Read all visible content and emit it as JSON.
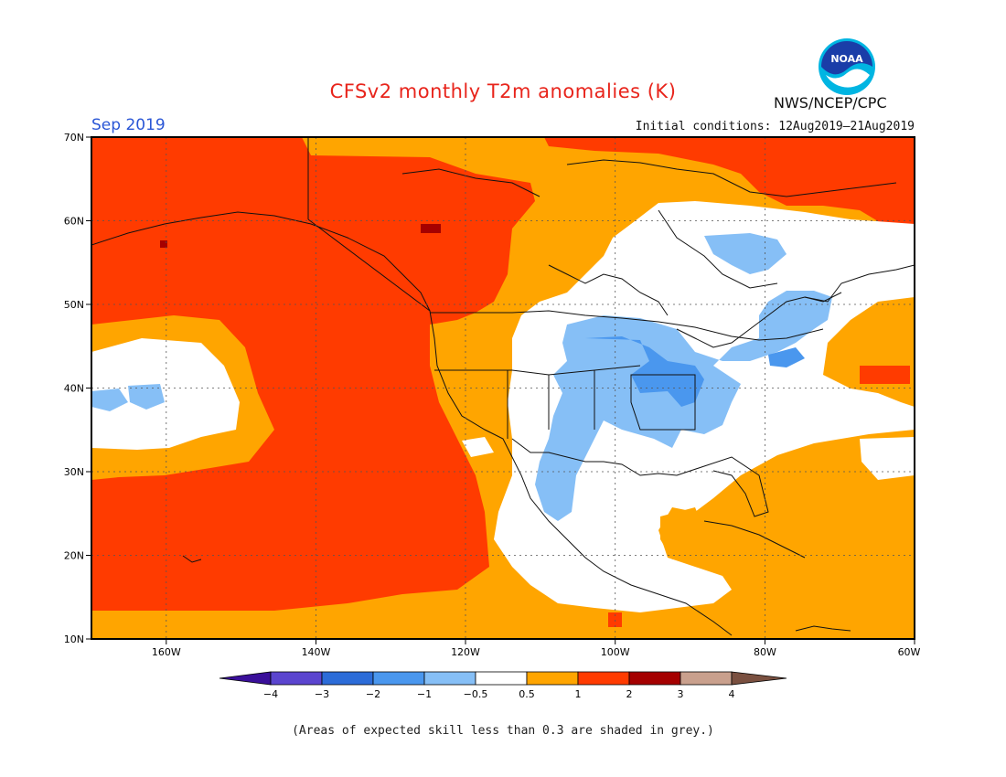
{
  "title": "CFSv2 monthly T2m anomalies (K)",
  "valid_month": "Sep 2019",
  "initial_conditions": "Initial conditions: 12Aug2019–21Aug2019",
  "agency": "NWS/NCEP/CPC",
  "logo_text": "NOAA",
  "footnote": "(Areas of expected skill less than 0.3 are shaded in grey.)",
  "map": {
    "lon_range": [
      -170,
      -60
    ],
    "lat_range": [
      10,
      70
    ],
    "lon_ticks": [
      "160W",
      "140W",
      "120W",
      "100W",
      "80W",
      "60W"
    ],
    "lat_ticks": [
      "70N",
      "60N",
      "50N",
      "40N",
      "30N",
      "20N",
      "10N"
    ],
    "grid": "dotted"
  },
  "colorbar": {
    "labels": [
      "−4",
      "−3",
      "−2",
      "−1",
      "−0.5",
      "0.5",
      "1",
      "2",
      "3",
      "4"
    ],
    "colors": [
      "#3a0f9a",
      "#5b45cf",
      "#2c6cd8",
      "#4a97ee",
      "#86bff6",
      "#ffffff",
      "#ffa500",
      "#ff3b00",
      "#a50000",
      "#c9a08d",
      "#7a5040"
    ]
  }
}
